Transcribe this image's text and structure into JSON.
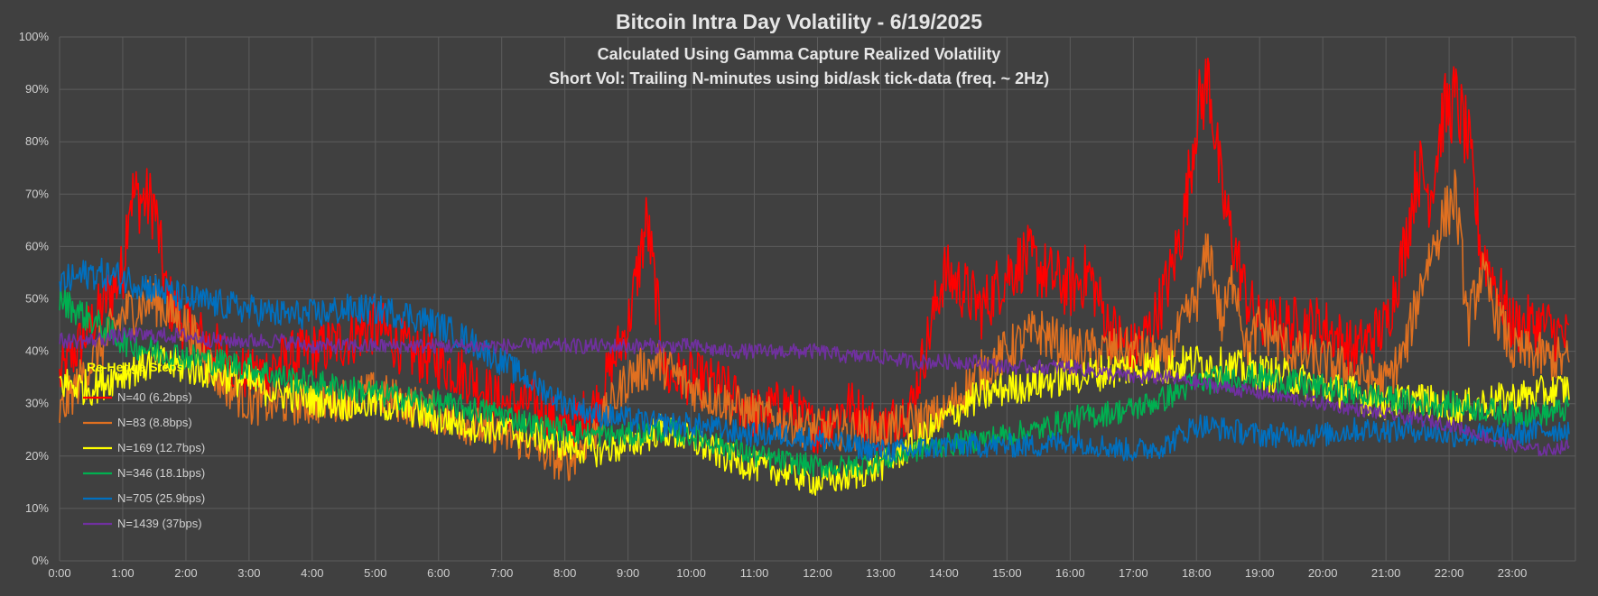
{
  "colors": {
    "background": "#404040",
    "grid": "#5c5c5c",
    "text": "#d0d0d0",
    "title": "#e6e6e6",
    "legend_title": "#ffff00"
  },
  "chart_data": {
    "type": "line",
    "title": "Bitcoin Intra Day Volatility - 6/19/2025",
    "subtitle": "Calculated Using Gamma Capture Realized Volatility",
    "subtitle2": "Short Vol: Trailing N-minutes using bid/ask tick-data (freq. ~ 2Hz)",
    "xlabel": "",
    "ylabel": "",
    "xlim": [
      0,
      24
    ],
    "ylim": [
      0,
      100
    ],
    "grid": true,
    "legend_position": "left",
    "legend_title": "Re-Hedge Steps",
    "x_ticks": [
      "0:00",
      "1:00",
      "2:00",
      "3:00",
      "4:00",
      "5:00",
      "6:00",
      "7:00",
      "8:00",
      "9:00",
      "10:00",
      "11:00",
      "12:00",
      "13:00",
      "14:00",
      "15:00",
      "16:00",
      "17:00",
      "18:00",
      "19:00",
      "20:00",
      "21:00",
      "22:00",
      "23:00"
    ],
    "y_ticks": [
      "0%",
      "10%",
      "20%",
      "30%",
      "40%",
      "50%",
      "60%",
      "70%",
      "80%",
      "90%",
      "100%"
    ],
    "series": [
      {
        "name": "N=40 (6.2bps)",
        "color": "#ff0000",
        "x": [
          0,
          0.5,
          1.0,
          1.1,
          1.3,
          1.5,
          1.7,
          2.0,
          2.5,
          3.0,
          3.5,
          4.0,
          4.5,
          5.0,
          5.5,
          6.0,
          6.5,
          7.0,
          7.5,
          8.0,
          8.5,
          9.0,
          9.3,
          9.6,
          10.0,
          10.5,
          11.0,
          11.5,
          12.0,
          12.5,
          13.0,
          13.5,
          14.0,
          14.3,
          14.6,
          15.0,
          15.3,
          15.6,
          16.0,
          16.3,
          16.6,
          17.0,
          17.3,
          17.6,
          17.8,
          18.0,
          18.2,
          18.4,
          18.6,
          18.8,
          19.0,
          19.5,
          20.0,
          20.5,
          21.0,
          21.3,
          21.5,
          21.7,
          21.9,
          22.1,
          22.3,
          22.5,
          23.0,
          23.5,
          23.9
        ],
        "y": [
          35,
          45,
          55,
          70,
          69,
          68,
          50,
          45,
          40,
          35,
          38,
          40,
          42,
          45,
          40,
          38,
          35,
          30,
          30,
          25,
          30,
          45,
          65,
          35,
          35,
          33,
          28,
          30,
          25,
          30,
          25,
          30,
          55,
          52,
          48,
          55,
          58,
          55,
          52,
          55,
          45,
          40,
          45,
          55,
          65,
          85,
          92,
          70,
          60,
          50,
          45,
          45,
          45,
          40,
          45,
          60,
          75,
          70,
          85,
          88,
          80,
          60,
          45,
          45,
          42
        ]
      },
      {
        "name": "N=83 (8.8bps)",
        "color": "#e07020",
        "x": [
          0,
          0.5,
          1.0,
          1.5,
          2.0,
          2.5,
          3.0,
          4.0,
          5.0,
          6.0,
          7.0,
          7.5,
          8.0,
          8.5,
          9.0,
          9.5,
          10.0,
          11.0,
          12.0,
          13.0,
          14.0,
          14.5,
          15.0,
          15.5,
          16.0,
          17.0,
          17.5,
          18.0,
          18.2,
          18.4,
          18.6,
          18.8,
          19.0,
          19.5,
          20.0,
          20.5,
          21.0,
          21.3,
          21.6,
          21.9,
          22.1,
          22.3,
          22.5,
          23.0,
          23.9
        ],
        "y": [
          28,
          38,
          47,
          50,
          45,
          35,
          30,
          30,
          32,
          28,
          24,
          22,
          18,
          25,
          35,
          38,
          33,
          28,
          25,
          25,
          28,
          35,
          40,
          44,
          40,
          40,
          38,
          50,
          60,
          45,
          55,
          40,
          45,
          40,
          38,
          36,
          34,
          40,
          55,
          65,
          70,
          45,
          55,
          40,
          38
        ]
      },
      {
        "name": "N=169 (12.7bps)",
        "color": "#ffff00",
        "x": [
          0,
          0.5,
          1.0,
          1.5,
          2.0,
          2.5,
          3.0,
          3.5,
          4.0,
          4.5,
          5.0,
          5.5,
          6.0,
          6.5,
          7.0,
          7.5,
          8.0,
          8.5,
          9.0,
          9.5,
          10.0,
          10.5,
          11.0,
          11.5,
          12.0,
          12.5,
          13.0,
          13.5,
          14.0,
          14.5,
          15.0,
          15.5,
          16.0,
          16.5,
          17.0,
          17.5,
          18.0,
          18.5,
          19.0,
          19.5,
          20.0,
          20.5,
          21.0,
          21.5,
          22.0,
          22.5,
          23.0,
          23.5,
          23.9
        ],
        "y": [
          34,
          33,
          36,
          38,
          37,
          36,
          34,
          32,
          31,
          30,
          30,
          29,
          27,
          26,
          25,
          24,
          22,
          21,
          22,
          25,
          23,
          20,
          18,
          17,
          15,
          16,
          18,
          22,
          27,
          31,
          33,
          34,
          35,
          36,
          37,
          37,
          38,
          37,
          36,
          35,
          33,
          32,
          30,
          31,
          29,
          30,
          31,
          32,
          33
        ]
      },
      {
        "name": "N=346 (18.1bps)",
        "color": "#00b050",
        "x": [
          0,
          0.5,
          1.0,
          1.5,
          2.0,
          2.5,
          3.0,
          3.5,
          4.0,
          4.5,
          5.0,
          5.5,
          6.0,
          6.5,
          7.0,
          7.5,
          8.0,
          8.5,
          9.0,
          9.5,
          10.0,
          10.5,
          11.0,
          11.5,
          12.0,
          12.5,
          13.0,
          13.5,
          14.0,
          14.5,
          15.0,
          15.5,
          16.0,
          16.5,
          17.0,
          17.5,
          18.0,
          18.5,
          19.0,
          19.5,
          20.0,
          20.5,
          21.0,
          21.5,
          22.0,
          22.5,
          23.0,
          23.5,
          23.9
        ],
        "y": [
          50,
          46,
          42,
          40,
          39,
          38,
          37,
          35,
          34,
          33,
          32,
          31,
          30,
          29,
          28,
          26,
          25,
          24,
          24,
          25,
          24,
          22,
          20,
          19,
          18,
          18,
          19,
          21,
          22,
          23,
          24,
          25,
          27,
          28,
          29,
          31,
          34,
          35,
          35,
          34,
          33,
          32,
          31,
          30,
          30,
          29,
          28,
          28,
          29
        ]
      },
      {
        "name": "N=705 (25.9bps)",
        "color": "#0070c0",
        "x": [
          0,
          0.5,
          1.0,
          1.5,
          2.0,
          2.5,
          3.0,
          3.5,
          4.0,
          4.5,
          5.0,
          5.5,
          6.0,
          6.5,
          7.0,
          7.5,
          8.0,
          8.5,
          9.0,
          9.5,
          10.0,
          10.5,
          11.0,
          11.5,
          12.0,
          12.5,
          13.0,
          13.5,
          14.0,
          14.5,
          15.0,
          15.5,
          16.0,
          16.5,
          17.0,
          17.5,
          18.0,
          18.5,
          19.0,
          19.5,
          20.0,
          20.5,
          21.0,
          21.5,
          22.0,
          22.5,
          23.0,
          23.5,
          23.9
        ],
        "y": [
          53,
          55,
          54,
          52,
          50,
          49,
          48,
          47,
          47,
          48,
          48,
          47,
          45,
          42,
          38,
          34,
          30,
          28,
          27,
          26,
          26,
          25,
          24,
          24,
          23,
          22,
          21,
          21,
          22,
          22,
          22,
          22,
          23,
          22,
          21,
          22,
          26,
          25,
          24,
          24,
          24,
          25,
          25,
          25,
          24,
          24,
          24,
          25,
          25
        ]
      },
      {
        "name": "N=1439 (37bps)",
        "color": "#7030a0",
        "x": [
          0,
          0.5,
          1.0,
          1.5,
          2.0,
          2.5,
          3.0,
          3.5,
          4.0,
          4.5,
          5.0,
          5.5,
          6.0,
          6.5,
          7.0,
          7.5,
          8.0,
          8.5,
          9.0,
          9.5,
          10.0,
          10.5,
          11.0,
          11.5,
          12.0,
          12.5,
          13.0,
          13.5,
          14.0,
          14.5,
          15.0,
          15.5,
          16.0,
          16.5,
          17.0,
          17.5,
          18.0,
          18.5,
          19.0,
          19.5,
          20.0,
          20.5,
          21.0,
          21.5,
          22.0,
          22.5,
          23.0,
          23.5,
          23.9
        ],
        "y": [
          42,
          42,
          43,
          43,
          43,
          42,
          42,
          42,
          41,
          41,
          41,
          41,
          41,
          41,
          41,
          41,
          41,
          41,
          41,
          41,
          41,
          40,
          40,
          40,
          40,
          39,
          39,
          38,
          38,
          38,
          37,
          37,
          37,
          36,
          35,
          35,
          34,
          33,
          32,
          31,
          30,
          29,
          28,
          27,
          26,
          24,
          22,
          21,
          22
        ]
      }
    ]
  }
}
